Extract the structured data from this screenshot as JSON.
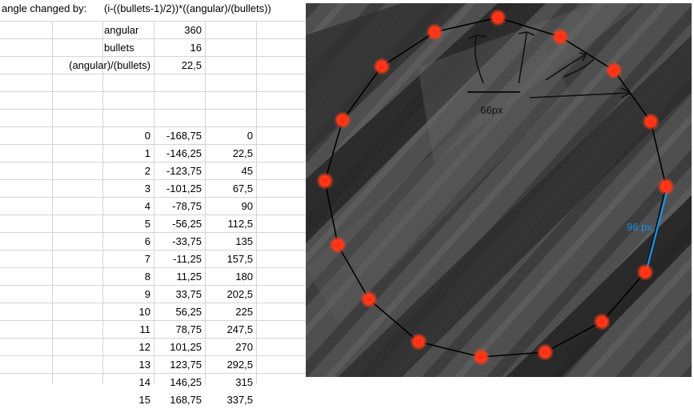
{
  "sheet": {
    "header": {
      "label": "angle changed by:",
      "formula": "(i-((bullets-1)/2))*((angular)/(bullets))"
    },
    "params": [
      {
        "label": "angular",
        "value": "360"
      },
      {
        "label": "bullets",
        "value": "16"
      },
      {
        "label": "(angular)/(bullets)",
        "value": "22,5"
      }
    ],
    "rows": [
      {
        "i": "0",
        "offset": "-168,75",
        "angle": "0"
      },
      {
        "i": "1",
        "offset": "-146,25",
        "angle": "22,5"
      },
      {
        "i": "2",
        "offset": "-123,75",
        "angle": "45"
      },
      {
        "i": "3",
        "offset": "-101,25",
        "angle": "67,5"
      },
      {
        "i": "4",
        "offset": "-78,75",
        "angle": "90"
      },
      {
        "i": "5",
        "offset": "-56,25",
        "angle": "112,5"
      },
      {
        "i": "6",
        "offset": "-33,75",
        "angle": "135"
      },
      {
        "i": "7",
        "offset": "-11,25",
        "angle": "157,5"
      },
      {
        "i": "8",
        "offset": "11,25",
        "angle": "180"
      },
      {
        "i": "9",
        "offset": "33,75",
        "angle": "202,5"
      },
      {
        "i": "10",
        "offset": "56,25",
        "angle": "225"
      },
      {
        "i": "11",
        "offset": "78,75",
        "angle": "247,5"
      },
      {
        "i": "12",
        "offset": "101,25",
        "angle": "270"
      },
      {
        "i": "13",
        "offset": "123,75",
        "angle": "292,5"
      },
      {
        "i": "14",
        "offset": "146,25",
        "angle": "315"
      },
      {
        "i": "15",
        "offset": "168,75",
        "angle": "337,5"
      }
    ]
  },
  "image": {
    "label_spacing": "66px",
    "label_side": "96 px",
    "colors": {
      "bullet": "#ff2a10",
      "polygon": "#000000",
      "side_highlight": "#1a8fe3",
      "arrows": "#111111"
    }
  }
}
